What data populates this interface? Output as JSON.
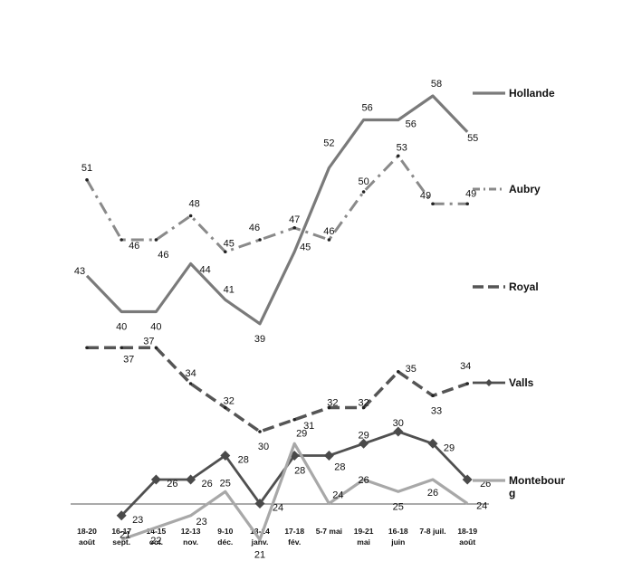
{
  "chart_data": {
    "type": "line",
    "title": "",
    "xlabel": "",
    "ylabel": "",
    "ylim": [
      18,
      60
    ],
    "grid": false,
    "legend_position": "right",
    "categories": [
      [
        "18-20",
        "août"
      ],
      [
        "16-17",
        "sept."
      ],
      [
        "14-15",
        "oct."
      ],
      [
        "12-13",
        "nov."
      ],
      [
        "9-10",
        "déc."
      ],
      [
        "13-14",
        "janv."
      ],
      [
        "17-18",
        "fév."
      ],
      [
        "5-7 mai",
        ""
      ],
      [
        "19-21",
        "mai"
      ],
      [
        "16-18",
        "juin"
      ],
      [
        "7-8 juil.",
        ""
      ],
      [
        "18-19",
        "août"
      ]
    ],
    "series": [
      {
        "name": "Hollande",
        "color": "#7a7a7a",
        "style": "solid",
        "values": [
          43,
          40,
          40,
          44,
          41,
          39,
          45,
          52,
          56,
          56,
          58,
          55
        ]
      },
      {
        "name": "Aubry",
        "color": "#8a8a8a",
        "style": "dashdot",
        "values": [
          51,
          46,
          46,
          48,
          45,
          46,
          47,
          46,
          50,
          53,
          49,
          49
        ]
      },
      {
        "name": "Royal",
        "color": "#555555",
        "style": "dashed",
        "values": [
          37,
          37,
          37,
          34,
          32,
          30,
          31,
          32,
          32,
          35,
          33,
          34
        ]
      },
      {
        "name": "Valls",
        "color": "#505050",
        "style": "solid-diamond",
        "values": [
          null,
          23,
          26,
          26,
          28,
          24,
          28,
          28,
          29,
          30,
          29,
          26
        ]
      },
      {
        "name": "Montebourg",
        "legend_lines": [
          "Montebour",
          "g"
        ],
        "color": "#a8a8a8",
        "style": "solid",
        "values": [
          null,
          21,
          22,
          23,
          25,
          21,
          29,
          24,
          26,
          25,
          26,
          24
        ]
      }
    ]
  }
}
